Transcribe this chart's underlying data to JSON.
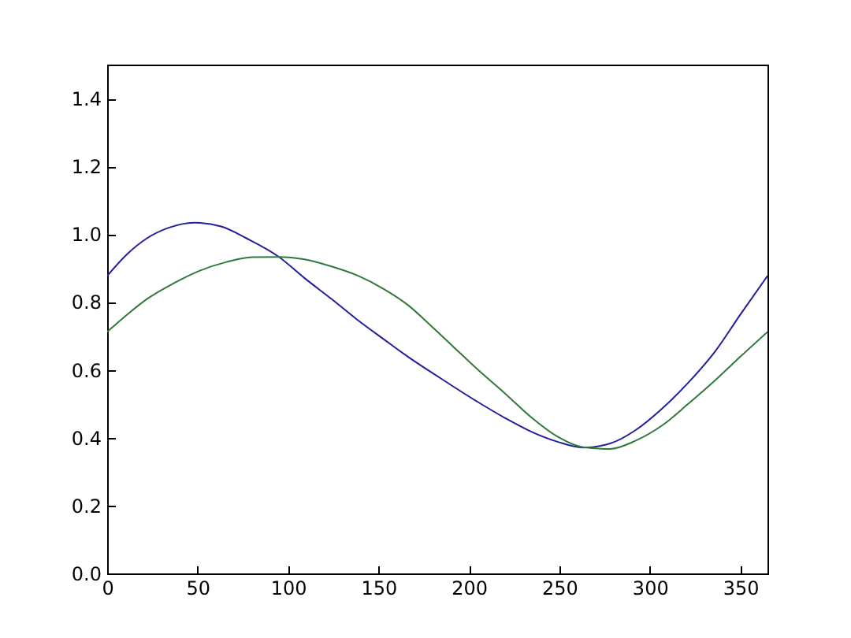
{
  "chart_data": {
    "type": "line",
    "xlim": [
      0,
      365
    ],
    "xticks": [
      0,
      50,
      100,
      150,
      200,
      250,
      300,
      350
    ],
    "ylim": [
      0,
      1.5
    ],
    "yticks": [
      {
        "value": 0,
        "label": "0.0"
      },
      0.2,
      0.4,
      0.6,
      0.8,
      {
        "value": 1,
        "label": "1.0"
      },
      1.2,
      1.4
    ],
    "series": [
      {
        "color": "#20209a",
        "x": [
          0,
          11,
          22,
          34,
          48,
          63,
          77,
          95,
          109,
          124,
          138,
          153,
          167,
          176,
          185,
          191,
          205,
          220,
          234,
          249,
          263,
          278,
          292,
          307,
          321,
          336,
          350,
          365
        ],
        "values": [
          0.877,
          0.941,
          0.988,
          1.019,
          1.034,
          1.023,
          0.988,
          0.933,
          0.871,
          0.809,
          0.749,
          0.69,
          0.636,
          0.604,
          0.573,
          0.552,
          0.505,
          0.458,
          0.419,
          0.388,
          0.371,
          0.383,
          0.422,
          0.487,
          0.561,
          0.654,
          0.763,
          0.877
        ]
      },
      {
        "color": "#2f7a3a",
        "x": [
          0,
          11,
          22,
          37,
          51,
          66,
          80,
          95,
          109,
          124,
          138,
          153,
          167,
          176,
          185,
          191,
          205,
          220,
          234,
          249,
          263,
          278,
          292,
          307,
          321,
          336,
          350,
          365
        ],
        "values": [
          0.712,
          0.763,
          0.809,
          0.856,
          0.892,
          0.918,
          0.932,
          0.933,
          0.926,
          0.905,
          0.879,
          0.838,
          0.788,
          0.745,
          0.7,
          0.67,
          0.6,
          0.53,
          0.462,
          0.403,
          0.372,
          0.367,
          0.391,
          0.437,
          0.499,
          0.569,
          0.639,
          0.712
        ]
      }
    ]
  }
}
